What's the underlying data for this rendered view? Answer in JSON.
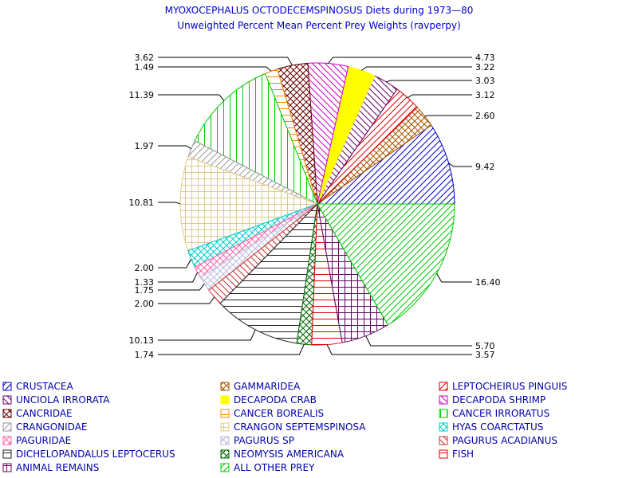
{
  "chart_data": {
    "type": "pie",
    "title": "MYOXOCEPHALUS OCTODECEMSPINOSUS Diets during 1973—80",
    "subtitle": "Unweighted Percent Mean Percent Prey  Weights (ravperpy)",
    "slices": [
      {
        "name": "CRUSTACEA",
        "label": "9.42",
        "value": 9.42,
        "color": "#0000cc",
        "pattern": "diag-right"
      },
      {
        "name": "GAMMARIDEA",
        "label": "2.60",
        "value": 2.6,
        "color": "#aa5500",
        "pattern": "cross-diag"
      },
      {
        "name": "LEPTOCHEIRUS PINGUIS",
        "label": "3.12",
        "value": 3.12,
        "color": "#dd0000",
        "pattern": "diag-right"
      },
      {
        "name": "UNCIOLA IRRORATA",
        "label": "3.03",
        "value": 3.03,
        "color": "#660066",
        "pattern": "diag-left"
      },
      {
        "name": "DECAPODA CRAB",
        "label": "3.22",
        "value": 3.22,
        "color": "#ffff00",
        "pattern": "solid"
      },
      {
        "name": "DECAPODA SHRIMP",
        "label": "4.73",
        "value": 4.73,
        "color": "#cc00cc",
        "pattern": "diag-left"
      },
      {
        "name": "CANCRIDAE",
        "label": "3.62",
        "value": 3.62,
        "color": "#660000",
        "pattern": "cross-diag"
      },
      {
        "name": "CANCER BOREALIS",
        "label": "1.49",
        "value": 1.49,
        "color": "#ff8800",
        "pattern": "horizontal"
      },
      {
        "name": "CANCER IRRORATUS",
        "label": "11.39",
        "value": 11.39,
        "color": "#00cc00",
        "pattern": "vertical"
      },
      {
        "name": "CRANGONIDAE",
        "label": "1.97",
        "value": 1.97,
        "color": "#999999",
        "pattern": "diag-right"
      },
      {
        "name": "CRANGON SEPTEMSPINOSA",
        "label": "10.81",
        "value": 10.81,
        "color": "#ddcc88",
        "pattern": "grid"
      },
      {
        "name": "HYAS COARCTATUS",
        "label": "2.00",
        "value": 2.0,
        "color": "#00cccc",
        "pattern": "cross-diag"
      },
      {
        "name": "PAGURIDAE",
        "label": "1.33",
        "value": 1.33,
        "color": "#ff66aa",
        "pattern": "cross-diag"
      },
      {
        "name": "PAGURUS SP",
        "label": "1.75",
        "value": 1.75,
        "color": "#bbbbdd",
        "pattern": "cross-diag"
      },
      {
        "name": "PAGURUS ACADIANUS",
        "label": "2.00",
        "value": 2.0,
        "color": "#cc3333",
        "pattern": "diag-left"
      },
      {
        "name": "DICHELOPANDALUS LEPTOCERUS",
        "label": "10.13",
        "value": 10.13,
        "color": "#222222",
        "pattern": "horizontal"
      },
      {
        "name": "NEOMYSIS AMERICANA",
        "label": "1.74",
        "value": 1.74,
        "color": "#006600",
        "pattern": "cross-diag"
      },
      {
        "name": "FISH",
        "label": "3.57",
        "value": 3.57,
        "color": "#dd0000",
        "pattern": "horizontal"
      },
      {
        "name": "ANIMAL REMAINS",
        "label": "5.70",
        "value": 5.7,
        "color": "#660066",
        "pattern": "grid"
      },
      {
        "name": "ALL OTHER PREY",
        "label": "16.40",
        "value": 16.4,
        "color": "#00cc00",
        "pattern": "diag-right"
      }
    ],
    "legend_placement": "bottom",
    "legend_order": [
      "CRUSTACEA",
      "GAMMARIDEA",
      "LEPTOCHEIRUS PINGUIS",
      "UNCIOLA IRRORATA",
      "DECAPODA CRAB",
      "DECAPODA SHRIMP",
      "CANCRIDAE",
      "CANCER BOREALIS",
      "CANCER IRRORATUS",
      "CRANGONIDAE",
      "CRANGON SEPTEMSPINOSA",
      "HYAS COARCTATUS",
      "PAGURIDAE",
      "PAGURUS SP",
      "PAGURUS ACADIANUS",
      "DICHELOPANDALUS LEPTOCERUS",
      "NEOMYSIS AMERICANA",
      "FISH",
      "ANIMAL REMAINS",
      "ALL OTHER PREY"
    ]
  }
}
